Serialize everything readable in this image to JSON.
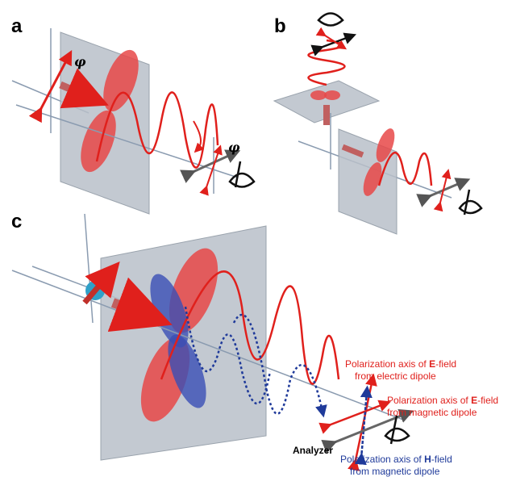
{
  "panels": [
    "a",
    "b",
    "c"
  ],
  "angle_labels": [
    "φ",
    "φ"
  ],
  "analyzer": "Analyzer",
  "annotations": [
    {
      "prefix": "Polarization axis of ",
      "bold": "E",
      "suffix": "-field",
      "line2": "from electric dipole",
      "color": "#e0201c"
    },
    {
      "prefix": "Polarization axis of ",
      "bold": "E",
      "suffix": "-field",
      "line2": "from magnetic dipole",
      "color": "#e0201c"
    },
    {
      "prefix": "Polarization axis of ",
      "bold": "H",
      "suffix": "-field",
      "line2": "from magnetic dipole",
      "color": "#1f3a9a"
    }
  ]
}
